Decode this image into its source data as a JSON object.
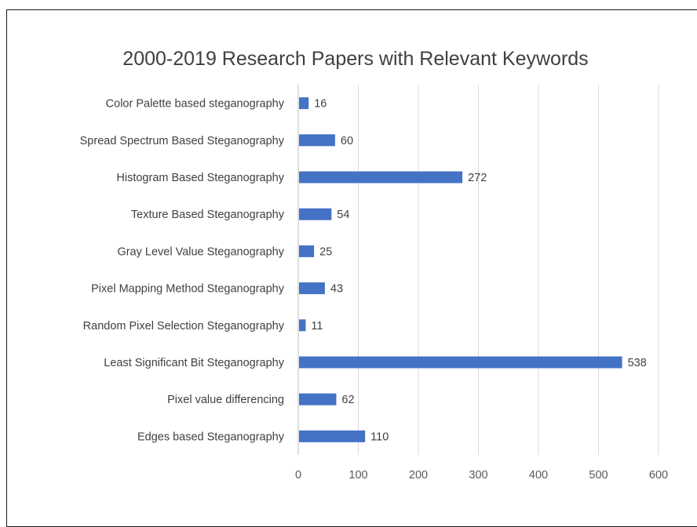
{
  "chart_data": {
    "type": "bar",
    "orientation": "horizontal",
    "title": "2000-2019 Research Papers with Relevant Keywords",
    "categories": [
      "Color Palette based steganography",
      "Spread Spectrum Based Steganography",
      "Histogram Based Steganography",
      "Texture Based Steganography",
      "Gray Level Value Steganography",
      "Pixel Mapping Method Steganography",
      "Random Pixel Selection Steganography",
      "Least Significant Bit Steganography",
      "Pixel value differencing",
      "Edges based Steganography"
    ],
    "values": [
      16,
      60,
      272,
      54,
      25,
      43,
      11,
      538,
      62,
      110
    ],
    "xlim": [
      0,
      600
    ],
    "xticks": [
      0,
      100,
      200,
      300,
      400,
      500,
      600
    ],
    "grid": true,
    "legend": "none",
    "bar_color": "#4472C4"
  }
}
